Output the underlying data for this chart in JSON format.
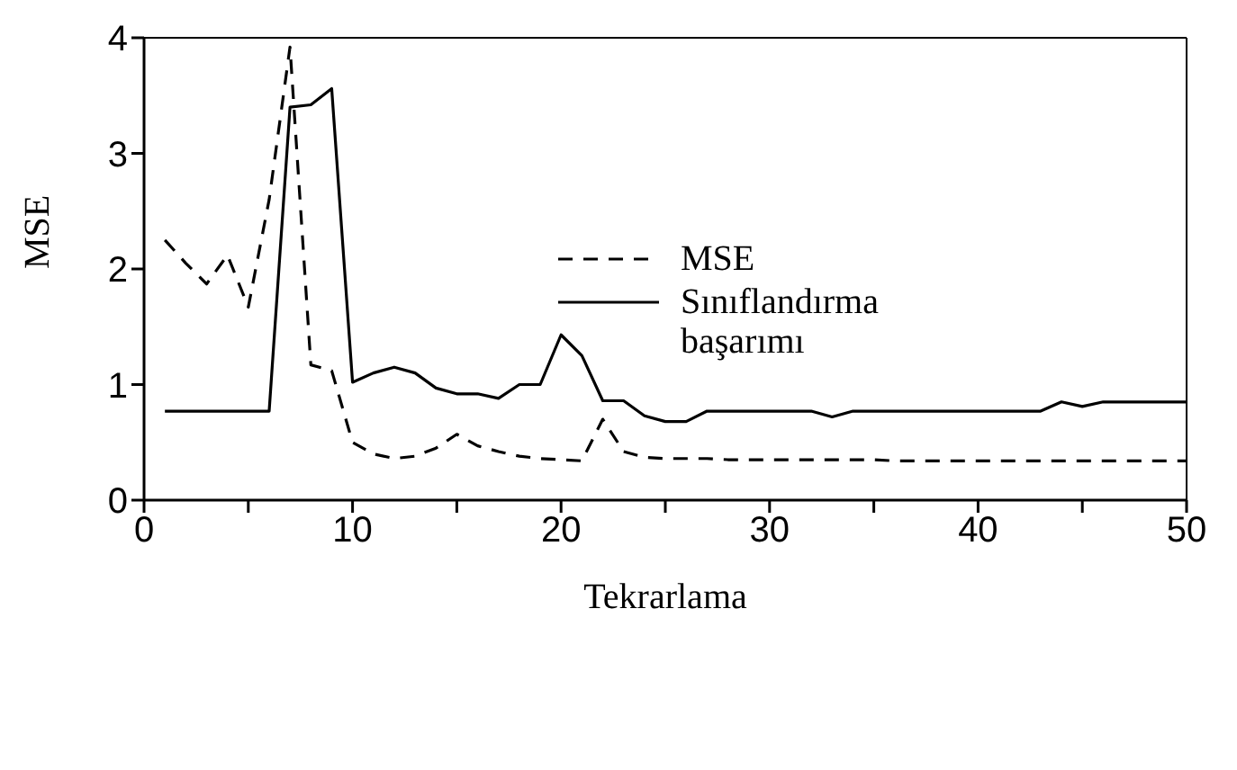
{
  "chart_data": {
    "type": "line",
    "xlabel": "Tekrarlama",
    "ylabel": "MSE",
    "x": [
      1,
      2,
      3,
      4,
      5,
      6,
      7,
      8,
      9,
      10,
      11,
      12,
      13,
      14,
      15,
      16,
      17,
      18,
      19,
      20,
      21,
      22,
      23,
      24,
      25,
      26,
      27,
      28,
      29,
      30,
      31,
      32,
      33,
      34,
      35,
      36,
      37,
      38,
      39,
      40,
      41,
      42,
      43,
      44,
      45,
      46,
      47,
      48,
      49,
      50
    ],
    "series": [
      {
        "name": "MSE",
        "color": "#000000",
        "line_style": "dashed",
        "values": [
          2.25,
          2.05,
          1.87,
          2.12,
          1.67,
          2.6,
          3.92,
          1.17,
          1.12,
          0.5,
          0.4,
          0.36,
          0.38,
          0.45,
          0.57,
          0.47,
          0.42,
          0.38,
          0.36,
          0.35,
          0.34,
          0.7,
          0.42,
          0.37,
          0.36,
          0.36,
          0.36,
          0.35,
          0.35,
          0.35,
          0.35,
          0.35,
          0.35,
          0.35,
          0.35,
          0.34,
          0.34,
          0.34,
          0.34,
          0.34,
          0.34,
          0.34,
          0.34,
          0.34,
          0.34,
          0.34,
          0.34,
          0.34,
          0.34,
          0.34
        ]
      },
      {
        "name": "Sınıflandırma başarımı",
        "color": "#000000",
        "line_style": "solid",
        "values": [
          0.77,
          0.77,
          0.77,
          0.77,
          0.77,
          0.77,
          3.4,
          3.42,
          3.56,
          1.02,
          1.1,
          1.15,
          1.1,
          0.97,
          0.92,
          0.92,
          0.88,
          1.0,
          1.0,
          1.43,
          1.25,
          0.86,
          0.86,
          0.73,
          0.68,
          0.68,
          0.77,
          0.77,
          0.77,
          0.77,
          0.77,
          0.77,
          0.72,
          0.77,
          0.77,
          0.77,
          0.77,
          0.77,
          0.77,
          0.77,
          0.77,
          0.77,
          0.77,
          0.85,
          0.81,
          0.85,
          0.85,
          0.85,
          0.85,
          0.85
        ]
      }
    ],
    "xlim": [
      0,
      50
    ],
    "xticks": [
      0,
      {
        "value": 5,
        "label": null
      },
      10,
      {
        "value": 15,
        "label": null
      },
      20,
      {
        "value": 25,
        "label": null
      },
      30,
      {
        "value": 35,
        "label": null
      },
      40,
      {
        "value": 45,
        "label": null
      },
      50
    ],
    "ylim": [
      0,
      4
    ],
    "yticks": [
      0,
      1,
      2,
      3,
      4
    ],
    "grid": false,
    "legend": "right",
    "marker": "none"
  }
}
